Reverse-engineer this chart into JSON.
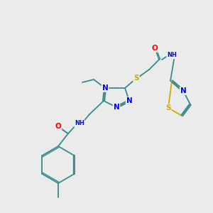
{
  "bg_color": "#ebebeb",
  "atom_colors": {
    "N": "#0000ff",
    "O": "#ff0000",
    "S": "#ccaa00",
    "C": "#3a8a8a",
    "bond": "#3a8a8a"
  },
  "font_size_atom": 7.5,
  "font_size_small": 6.0
}
